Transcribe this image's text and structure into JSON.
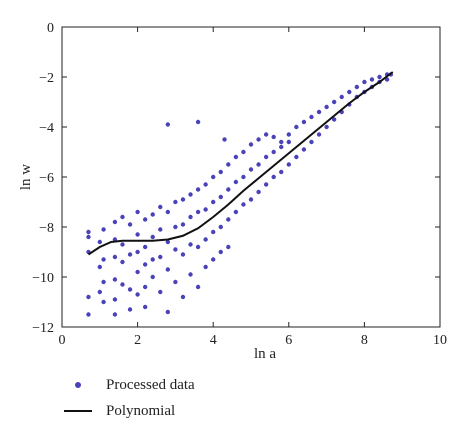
{
  "chart_data": {
    "type": "scatter",
    "xlabel": "ln a",
    "ylabel": "ln w",
    "xlim": [
      0,
      10
    ],
    "ylim": [
      -12,
      0
    ],
    "xticks": [
      0,
      2,
      4,
      6,
      8,
      10
    ],
    "yticks": [
      0,
      -2,
      -4,
      -6,
      -8,
      -10,
      -12
    ],
    "grid": false,
    "legend_placement": "bottom-left, below plot",
    "colors": {
      "scatter": "#4a42b8",
      "line": "#111111"
    },
    "series": [
      {
        "name": "Processed data",
        "kind": "scatter",
        "points": [
          [
            0.7,
            -8.2
          ],
          [
            0.7,
            -9.0
          ],
          [
            0.7,
            -10.8
          ],
          [
            0.7,
            -11.5
          ],
          [
            0.7,
            -8.4
          ],
          [
            1.0,
            -8.6
          ],
          [
            1.0,
            -9.6
          ],
          [
            1.0,
            -10.6
          ],
          [
            1.1,
            -8.1
          ],
          [
            1.1,
            -9.3
          ],
          [
            1.1,
            -10.2
          ],
          [
            1.1,
            -11.0
          ],
          [
            1.4,
            -7.8
          ],
          [
            1.4,
            -8.5
          ],
          [
            1.4,
            -9.2
          ],
          [
            1.4,
            -10.1
          ],
          [
            1.4,
            -10.9
          ],
          [
            1.4,
            -11.5
          ],
          [
            1.6,
            -7.6
          ],
          [
            1.6,
            -8.7
          ],
          [
            1.6,
            -9.4
          ],
          [
            1.6,
            -10.3
          ],
          [
            1.8,
            -7.9
          ],
          [
            1.8,
            -9.1
          ],
          [
            1.8,
            -10.5
          ],
          [
            1.8,
            -11.3
          ],
          [
            2.0,
            -7.4
          ],
          [
            2.0,
            -8.3
          ],
          [
            2.0,
            -9.0
          ],
          [
            2.0,
            -9.8
          ],
          [
            2.0,
            -10.7
          ],
          [
            2.2,
            -7.7
          ],
          [
            2.2,
            -8.8
          ],
          [
            2.2,
            -9.5
          ],
          [
            2.2,
            -10.4
          ],
          [
            2.2,
            -11.2
          ],
          [
            2.4,
            -7.5
          ],
          [
            2.4,
            -8.4
          ],
          [
            2.4,
            -9.3
          ],
          [
            2.4,
            -10.0
          ],
          [
            2.6,
            -7.2
          ],
          [
            2.6,
            -8.1
          ],
          [
            2.6,
            -9.2
          ],
          [
            2.6,
            -10.6
          ],
          [
            2.8,
            -7.4
          ],
          [
            2.8,
            -8.6
          ],
          [
            2.8,
            -9.7
          ],
          [
            2.8,
            -11.4
          ],
          [
            3.0,
            -7.0
          ],
          [
            3.0,
            -8.0
          ],
          [
            3.0,
            -8.9
          ],
          [
            3.0,
            -10.2
          ],
          [
            3.2,
            -6.9
          ],
          [
            3.2,
            -7.9
          ],
          [
            3.2,
            -9.1
          ],
          [
            3.2,
            -10.8
          ],
          [
            3.4,
            -6.7
          ],
          [
            3.4,
            -7.6
          ],
          [
            3.4,
            -8.7
          ],
          [
            3.4,
            -9.9
          ],
          [
            3.6,
            -6.5
          ],
          [
            3.6,
            -7.4
          ],
          [
            3.6,
            -8.8
          ],
          [
            3.6,
            -10.4
          ],
          [
            3.8,
            -6.3
          ],
          [
            3.8,
            -7.3
          ],
          [
            3.8,
            -8.5
          ],
          [
            3.8,
            -9.6
          ],
          [
            4.0,
            -6.0
          ],
          [
            4.0,
            -7.0
          ],
          [
            4.0,
            -8.2
          ],
          [
            4.0,
            -9.3
          ],
          [
            4.2,
            -5.8
          ],
          [
            4.2,
            -6.8
          ],
          [
            4.2,
            -8.0
          ],
          [
            4.2,
            -9.0
          ],
          [
            4.4,
            -5.5
          ],
          [
            4.4,
            -6.5
          ],
          [
            4.4,
            -7.7
          ],
          [
            4.4,
            -8.8
          ],
          [
            4.6,
            -5.2
          ],
          [
            4.6,
            -6.2
          ],
          [
            4.6,
            -7.4
          ],
          [
            4.8,
            -5.0
          ],
          [
            4.8,
            -6.0
          ],
          [
            4.8,
            -7.1
          ],
          [
            5.0,
            -4.7
          ],
          [
            5.0,
            -5.7
          ],
          [
            5.0,
            -6.9
          ],
          [
            5.2,
            -4.5
          ],
          [
            5.2,
            -5.5
          ],
          [
            5.2,
            -6.6
          ],
          [
            5.4,
            -4.3
          ],
          [
            5.4,
            -5.2
          ],
          [
            5.4,
            -6.3
          ],
          [
            5.6,
            -4.4
          ],
          [
            5.6,
            -5.0
          ],
          [
            5.6,
            -6.0
          ],
          [
            5.8,
            -4.6
          ],
          [
            5.8,
            -4.8
          ],
          [
            5.8,
            -5.8
          ],
          [
            6.0,
            -4.3
          ],
          [
            6.0,
            -4.6
          ],
          [
            6.0,
            -5.5
          ],
          [
            6.2,
            -4.0
          ],
          [
            6.2,
            -5.2
          ],
          [
            6.4,
            -3.8
          ],
          [
            6.4,
            -4.9
          ],
          [
            6.6,
            -3.6
          ],
          [
            6.6,
            -4.6
          ],
          [
            6.8,
            -3.4
          ],
          [
            6.8,
            -4.3
          ],
          [
            7.0,
            -3.2
          ],
          [
            7.0,
            -4.0
          ],
          [
            7.2,
            -3.0
          ],
          [
            7.2,
            -3.7
          ],
          [
            7.4,
            -2.8
          ],
          [
            7.4,
            -3.4
          ],
          [
            7.6,
            -2.6
          ],
          [
            7.6,
            -3.1
          ],
          [
            7.8,
            -2.4
          ],
          [
            7.8,
            -2.8
          ],
          [
            8.0,
            -2.2
          ],
          [
            8.0,
            -2.6
          ],
          [
            8.2,
            -2.1
          ],
          [
            8.2,
            -2.4
          ],
          [
            8.4,
            -2.0
          ],
          [
            8.4,
            -2.2
          ],
          [
            8.6,
            -1.9
          ],
          [
            8.6,
            -2.1
          ],
          [
            8.7,
            -1.9
          ],
          [
            3.6,
            -3.8
          ],
          [
            2.8,
            -3.9
          ],
          [
            4.3,
            -4.5
          ]
        ]
      },
      {
        "name": "Polynomial",
        "kind": "line",
        "points": [
          [
            0.7,
            -9.1
          ],
          [
            1.0,
            -8.8
          ],
          [
            1.3,
            -8.6
          ],
          [
            1.6,
            -8.55
          ],
          [
            2.0,
            -8.55
          ],
          [
            2.4,
            -8.55
          ],
          [
            2.8,
            -8.5
          ],
          [
            3.2,
            -8.35
          ],
          [
            3.6,
            -8.05
          ],
          [
            4.0,
            -7.6
          ],
          [
            4.4,
            -7.1
          ],
          [
            4.8,
            -6.55
          ],
          [
            5.2,
            -6.05
          ],
          [
            5.6,
            -5.55
          ],
          [
            6.0,
            -5.05
          ],
          [
            6.4,
            -4.55
          ],
          [
            6.8,
            -4.05
          ],
          [
            7.2,
            -3.55
          ],
          [
            7.6,
            -3.05
          ],
          [
            8.0,
            -2.6
          ],
          [
            8.4,
            -2.2
          ],
          [
            8.75,
            -1.8
          ]
        ]
      }
    ]
  },
  "legend": {
    "items": [
      {
        "label": "Processed data"
      },
      {
        "label": "Polynomial"
      }
    ]
  }
}
